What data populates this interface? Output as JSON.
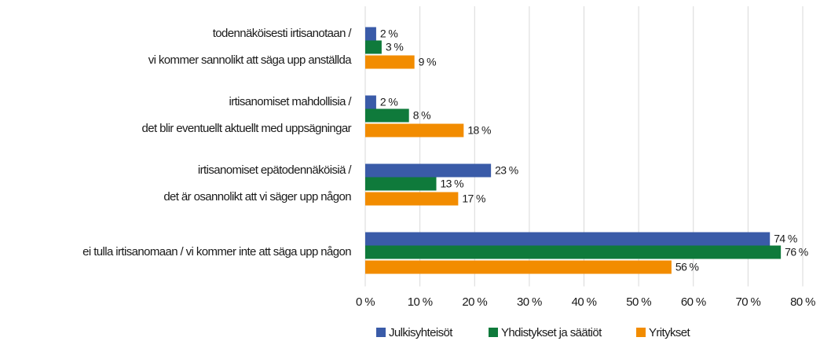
{
  "chart_data": {
    "type": "hbar",
    "categories": [
      [
        "todennäköisesti irtisanotaan /",
        "vi kommer sannolikt att säga upp anställda"
      ],
      [
        "irtisanomiset mahdollisia /",
        "det blir eventuellt aktuellt med uppsägningar"
      ],
      [
        "irtisanomiset epätodennäköisiä /",
        "det är osannolikt att vi säger upp någon"
      ],
      [
        "ei tulla irtisanomaan / vi kommer inte att säga upp någon"
      ]
    ],
    "series": [
      {
        "name": "Julkisyhteisöt",
        "color": "#3a5ba8",
        "values": [
          2,
          2,
          23,
          74
        ],
        "value_labels": [
          "2 %",
          "2 %",
          "23 %",
          "74 %"
        ]
      },
      {
        "name": "Yhdistykset ja säätiöt",
        "color": "#0f7a3b",
        "values": [
          3,
          8,
          13,
          76
        ],
        "value_labels": [
          "3 %",
          "8 %",
          "13 %",
          "76 %"
        ]
      },
      {
        "name": "Yritykset",
        "color": "#f28c00",
        "values": [
          9,
          18,
          17,
          56
        ],
        "value_labels": [
          "9 %",
          "18 %",
          "17 %",
          "56 %"
        ]
      }
    ],
    "xlim": [
      0,
      80
    ],
    "xticks": [
      {
        "value": 0,
        "label": "0 %"
      },
      {
        "value": 10,
        "label": "10 %"
      },
      {
        "value": 20,
        "label": "20 %"
      },
      {
        "value": 30,
        "label": "30 %"
      },
      {
        "value": 40,
        "label": "40 %"
      },
      {
        "value": 50,
        "label": "50 %"
      },
      {
        "value": 60,
        "label": "60 %"
      },
      {
        "value": 70,
        "label": "70 %"
      },
      {
        "value": 80,
        "label": "80 %"
      }
    ],
    "grid": true,
    "legend": "bottom"
  }
}
